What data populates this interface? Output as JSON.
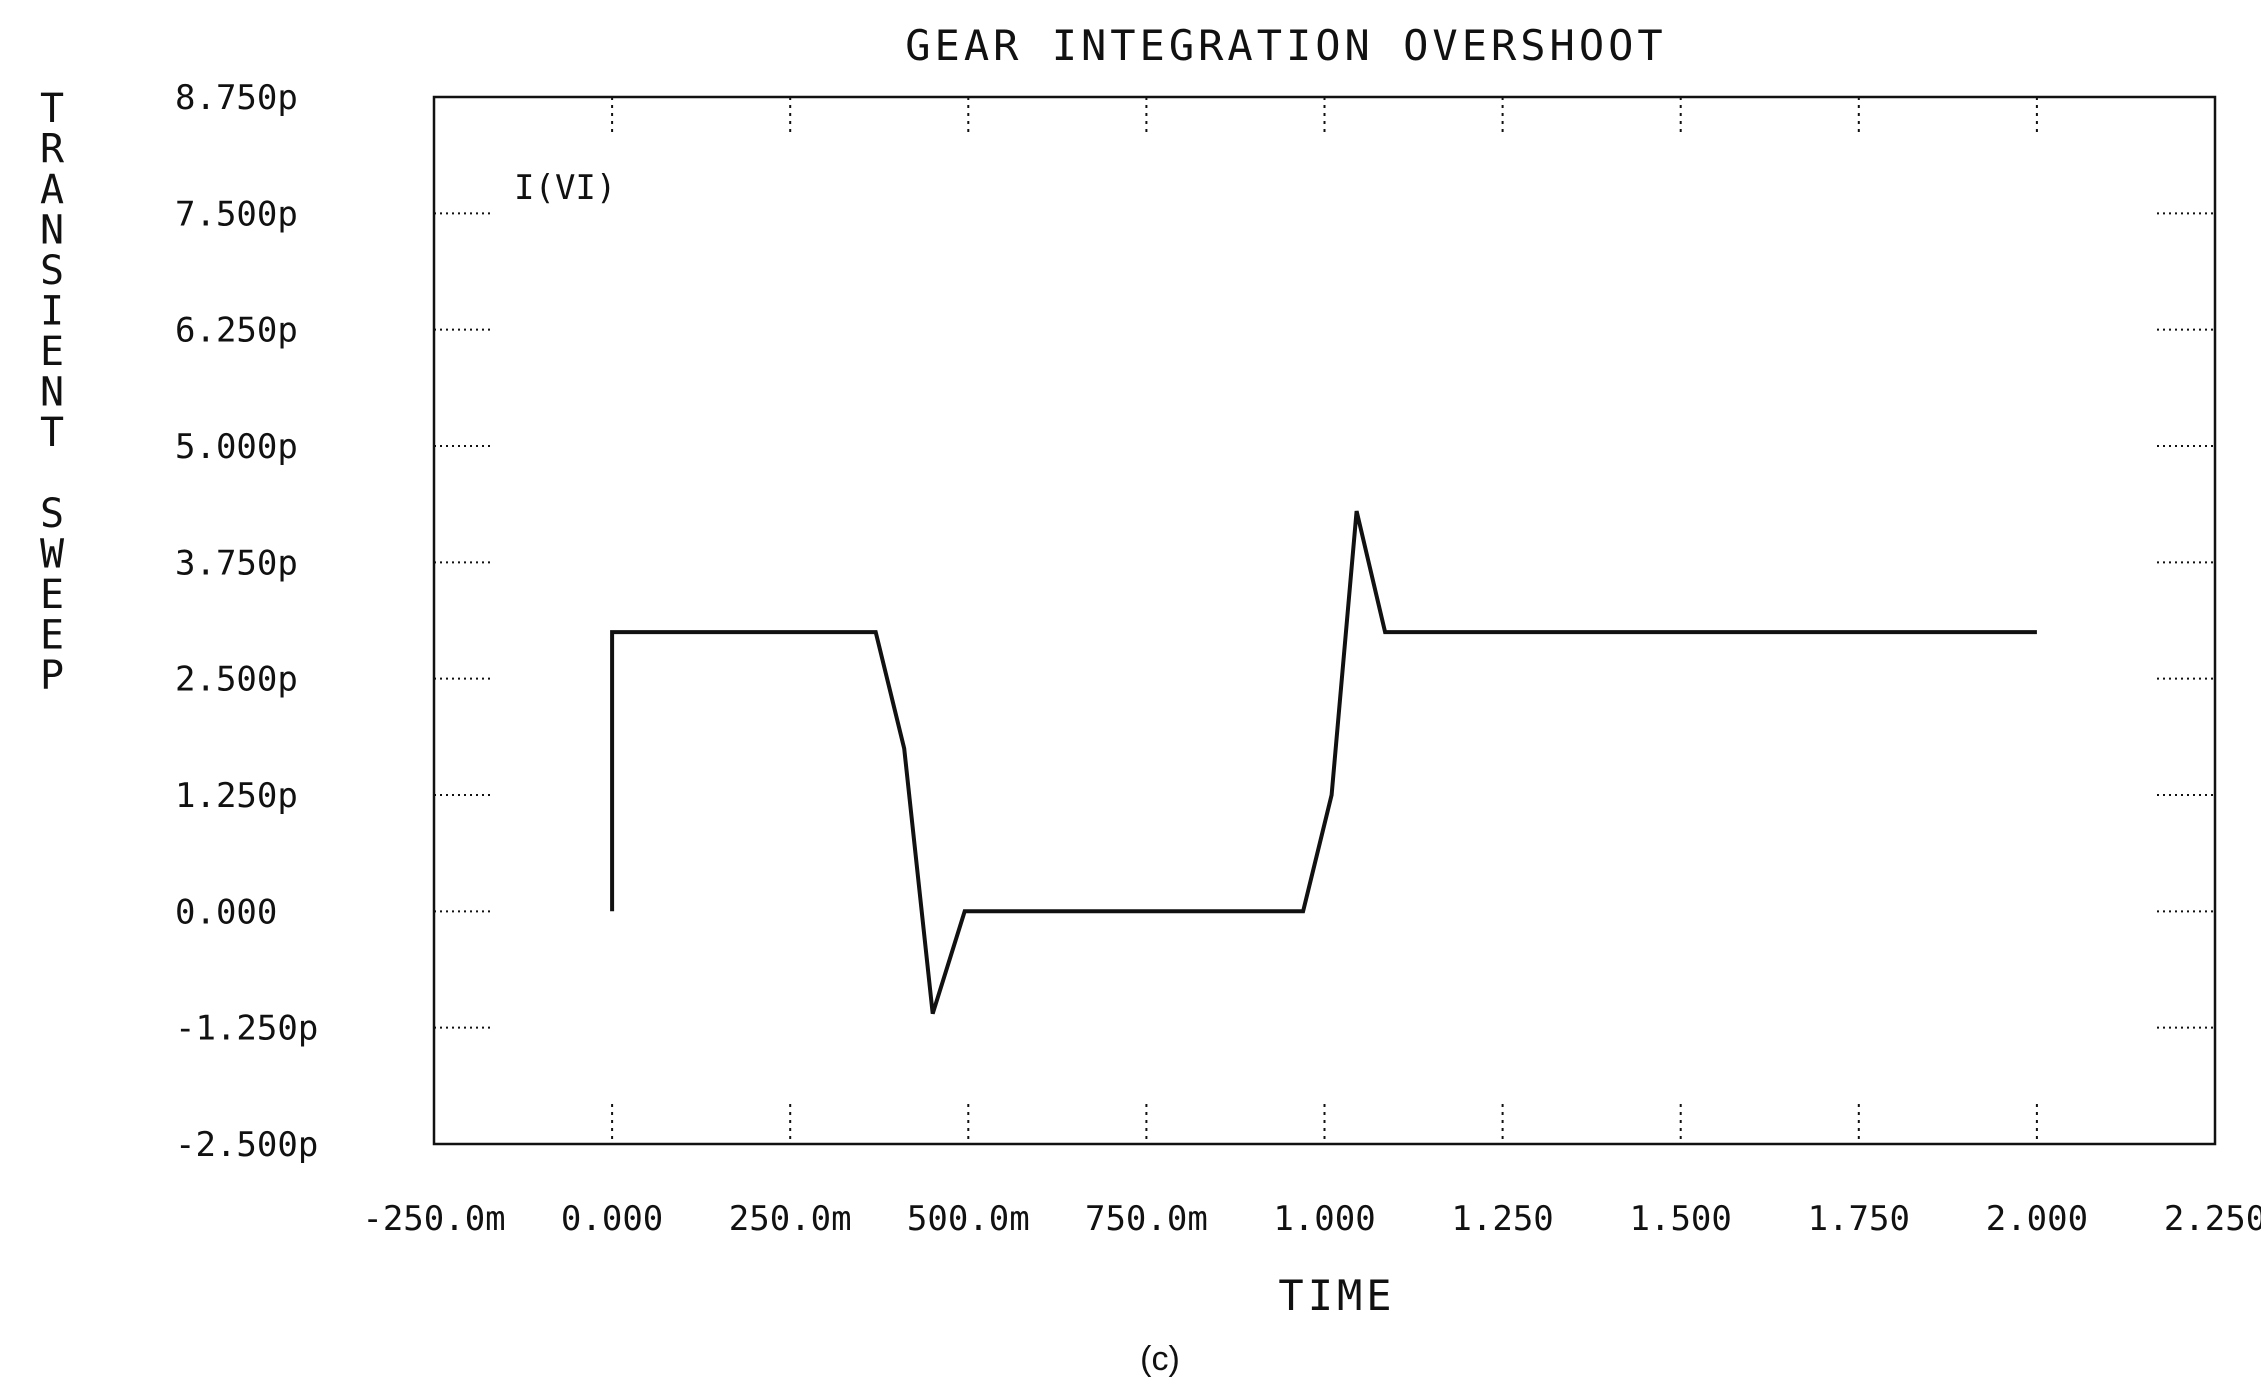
{
  "chart_data": {
    "type": "line",
    "title": "GEAR INTEGRATION OVERSHOOT",
    "xlabel": "TIME",
    "ylabel": "TRANSIENT SWEEP",
    "caption": "(c)",
    "series": [
      {
        "name": "I(VI)",
        "x": [
          0,
          0,
          0.37,
          0.41,
          0.45,
          0.495,
          0.97,
          1.01,
          1.045,
          1.085,
          2.0
        ],
        "y": [
          0,
          3.0,
          3.0,
          1.75,
          -1.1,
          0,
          0,
          1.25,
          4.3,
          3.0,
          3.0
        ]
      }
    ],
    "xlim": [
      -0.25,
      2.25
    ],
    "ylim": [
      -2.5,
      8.75
    ],
    "x_ticks": [
      -0.25,
      0,
      0.25,
      0.5,
      0.75,
      1.0,
      1.25,
      1.5,
      1.75,
      2.0,
      2.25
    ],
    "x_tick_labels": [
      "-250.0m",
      "0.000",
      "250.0m",
      "500.0m",
      "750.0m",
      "1.000",
      "1.250",
      "1.500",
      "1.750",
      "2.000",
      "2.250"
    ],
    "y_ticks": [
      8.75,
      7.5,
      6.25,
      5.0,
      3.75,
      2.5,
      1.25,
      0,
      -1.25,
      -2.5
    ],
    "y_tick_labels": [
      "8.750p",
      "7.500p",
      "6.250p",
      "5.000p",
      "3.750p",
      "2.500p",
      "1.250p",
      "0.000",
      "-1.250p",
      "-2.500p"
    ],
    "grid": "dotted tick marks",
    "legend": "top-left inside plot"
  }
}
